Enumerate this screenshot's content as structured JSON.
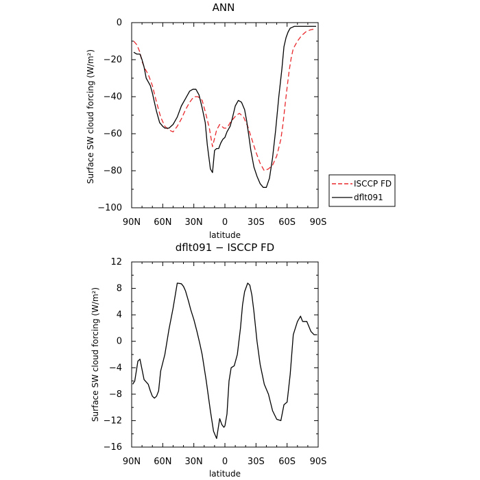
{
  "chart_data": [
    {
      "type": "line",
      "title": "ANN",
      "xlabel": "latitude",
      "ylabel": "Surface SW cloud forcing (W/m²)",
      "xlim": [
        90,
        -90
      ],
      "ylim": [
        -100,
        0
      ],
      "x_tick_labels": [
        "90N",
        "60N",
        "30N",
        "0",
        "30S",
        "60S",
        "90S"
      ],
      "x_ticks": [
        90,
        60,
        30,
        0,
        -30,
        -60,
        -90
      ],
      "y_ticks": [
        0,
        -20,
        -40,
        -60,
        -80,
        -100
      ],
      "grid": false,
      "legend": {
        "placement": "right",
        "entries": [
          "ISCCP FD",
          "dflt091"
        ]
      },
      "series": [
        {
          "name": "ISCCP FD",
          "color": "#e8262a",
          "dash": "dashed",
          "x": [
            88,
            85,
            82,
            80,
            77,
            74,
            70,
            66,
            62,
            58,
            54,
            50,
            46,
            42,
            38,
            34,
            30,
            26,
            22,
            19,
            15,
            12,
            8,
            5,
            3,
            1,
            0,
            -1,
            -3,
            -5,
            -8,
            -11,
            -14,
            -18,
            -22,
            -26,
            -30,
            -34,
            -38,
            -42,
            -46,
            -50,
            -54,
            -56,
            -58,
            -60,
            -62,
            -64,
            -66,
            -70,
            -74,
            -78,
            -82,
            -86,
            -88
          ],
          "y": [
            -10,
            -12,
            -16,
            -21,
            -25,
            -28,
            -34,
            -43,
            -51,
            -56,
            -58,
            -59,
            -56,
            -52,
            -47,
            -43,
            -40,
            -40,
            -42,
            -48,
            -57,
            -67,
            -58,
            -55,
            -56,
            -57,
            -57,
            -57,
            -56,
            -54,
            -52,
            -50,
            -49,
            -51,
            -56,
            -63,
            -70,
            -76,
            -80,
            -79,
            -77,
            -72,
            -63,
            -55,
            -45,
            -35,
            -26,
            -19,
            -14,
            -10,
            -7,
            -5,
            -4,
            -3.5,
            -3.5
          ]
        },
        {
          "name": "dflt091",
          "color": "#000000",
          "dash": "solid",
          "x": [
            88,
            85,
            82,
            80,
            78,
            76,
            72,
            70,
            68,
            66,
            63,
            60,
            58,
            54,
            50,
            46,
            42,
            38,
            34,
            31,
            28,
            25,
            22,
            19,
            17,
            14,
            12,
            10,
            8,
            6,
            4,
            2,
            0,
            -2,
            -5,
            -7,
            -10,
            -13,
            -16,
            -19,
            -21,
            -23,
            -25,
            -28,
            -31,
            -34,
            -37,
            -40,
            -43,
            -46,
            -49,
            -52,
            -55,
            -57,
            -59,
            -61,
            -63,
            -65,
            -67,
            -69,
            -72,
            -76,
            -80,
            -84,
            -86,
            -88
          ],
          "y": [
            -16,
            -17,
            -17,
            -20,
            -24,
            -30,
            -34,
            -38,
            -43,
            -48,
            -54,
            -56,
            -57,
            -57,
            -55,
            -51,
            -45,
            -41,
            -37,
            -36,
            -36,
            -39,
            -46,
            -54,
            -66,
            -79,
            -81,
            -69,
            -68,
            -68,
            -65,
            -63,
            -62,
            -59,
            -56,
            -52,
            -45,
            -42,
            -43,
            -47,
            -53,
            -61,
            -69,
            -78,
            -83,
            -87,
            -89,
            -89,
            -84,
            -73,
            -58,
            -40,
            -25,
            -13,
            -8,
            -5,
            -3,
            -2.5,
            -2,
            -2,
            -2,
            -2,
            -2,
            -2,
            -2,
            -2
          ]
        }
      ]
    },
    {
      "type": "line",
      "title": "dflt091 − ISCCP FD",
      "xlabel": "latitude",
      "ylabel": "Surface SW cloud forcing (W/m²)",
      "xlim": [
        90,
        -90
      ],
      "ylim": [
        -16,
        12
      ],
      "x_tick_labels": [
        "90N",
        "60N",
        "30N",
        "0",
        "30S",
        "60S",
        "90S"
      ],
      "x_ticks": [
        90,
        60,
        30,
        0,
        -30,
        -60,
        -90
      ],
      "y_ticks": [
        12,
        8,
        4,
        0,
        -4,
        -8,
        -12,
        -16
      ],
      "grid": false,
      "series": [
        {
          "color": "#000000",
          "dash": "solid",
          "x": [
            89,
            87,
            84,
            82,
            78,
            74,
            72,
            70,
            68,
            66,
            64,
            62,
            58,
            54,
            50,
            46,
            42,
            40,
            38,
            35,
            33,
            30,
            27,
            24,
            22,
            18,
            14,
            11,
            8,
            5,
            3,
            1,
            0,
            -2,
            -4,
            -6,
            -9,
            -12,
            -15,
            -17,
            -19,
            -22,
            -24,
            -26,
            -28,
            -31,
            -34,
            -38,
            -42,
            -46,
            -50,
            -54,
            -57,
            -60,
            -63,
            -66,
            -70,
            -73,
            -75,
            -79,
            -83,
            -86,
            -89
          ],
          "y": [
            -6.5,
            -6,
            -3,
            -2.7,
            -5.8,
            -6.5,
            -7.5,
            -8.3,
            -8.6,
            -8.3,
            -7.5,
            -4.5,
            -2,
            1.8,
            5,
            8.8,
            8.7,
            8.3,
            7.6,
            6,
            4.8,
            3.3,
            1.5,
            -0.5,
            -2,
            -6,
            -10.5,
            -13.6,
            -14.7,
            -11.7,
            -12.6,
            -13,
            -12.8,
            -11,
            -6,
            -4,
            -3.7,
            -2,
            2,
            5.5,
            7.5,
            8.8,
            8.5,
            7,
            4.5,
            0,
            -3.5,
            -6.5,
            -8,
            -10.5,
            -11.8,
            -12,
            -9.6,
            -9.2,
            -5,
            1,
            3,
            3.8,
            3,
            3,
            1.5,
            1,
            1
          ]
        }
      ]
    }
  ]
}
